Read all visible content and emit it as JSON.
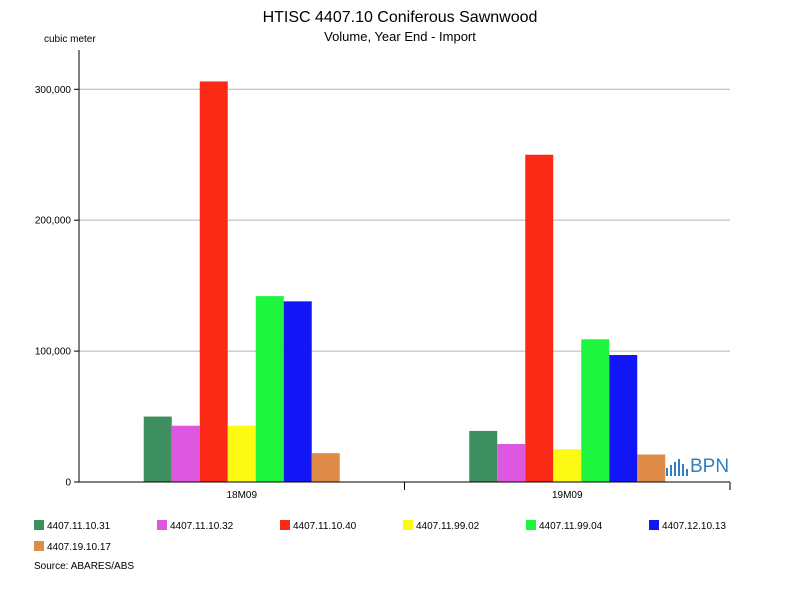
{
  "chart_data": {
    "type": "bar",
    "title": "HTISC 4407.10 Coniferous Sawnwood",
    "subtitle": "Volume, Year End - Import",
    "ylabel": "cubic meter",
    "categories": [
      "18M09",
      "19M09"
    ],
    "ylim": [
      0,
      330000
    ],
    "yticks": [
      0,
      100000,
      200000,
      300000
    ],
    "ytick_labels": [
      "0",
      "100,000",
      "200,000",
      "300,000"
    ],
    "grid": true,
    "legend_position": "bottom",
    "series": [
      {
        "name": "4407.11.10.31",
        "color": "#3d8f5f",
        "values": [
          50000,
          39000
        ]
      },
      {
        "name": "4407.11.10.32",
        "color": "#de57e0",
        "values": [
          43000,
          29000
        ]
      },
      {
        "name": "4407.11.10.40",
        "color": "#fa2a17",
        "values": [
          306000,
          250000
        ]
      },
      {
        "name": "4407.11.99.02",
        "color": "#fcf914",
        "values": [
          43000,
          25000
        ]
      },
      {
        "name": "4407.11.99.04",
        "color": "#1ef53e",
        "values": [
          142000,
          109000
        ]
      },
      {
        "name": "4407.12.10.13",
        "color": "#1215f5",
        "values": [
          138000,
          97000
        ]
      },
      {
        "name": "4407.19.10.17",
        "color": "#de8c47",
        "values": [
          22000,
          21000
        ]
      }
    ]
  },
  "source": "Source: ABARES/ABS",
  "logo": {
    "text": "BPN",
    "color": "#2f7fc1"
  }
}
